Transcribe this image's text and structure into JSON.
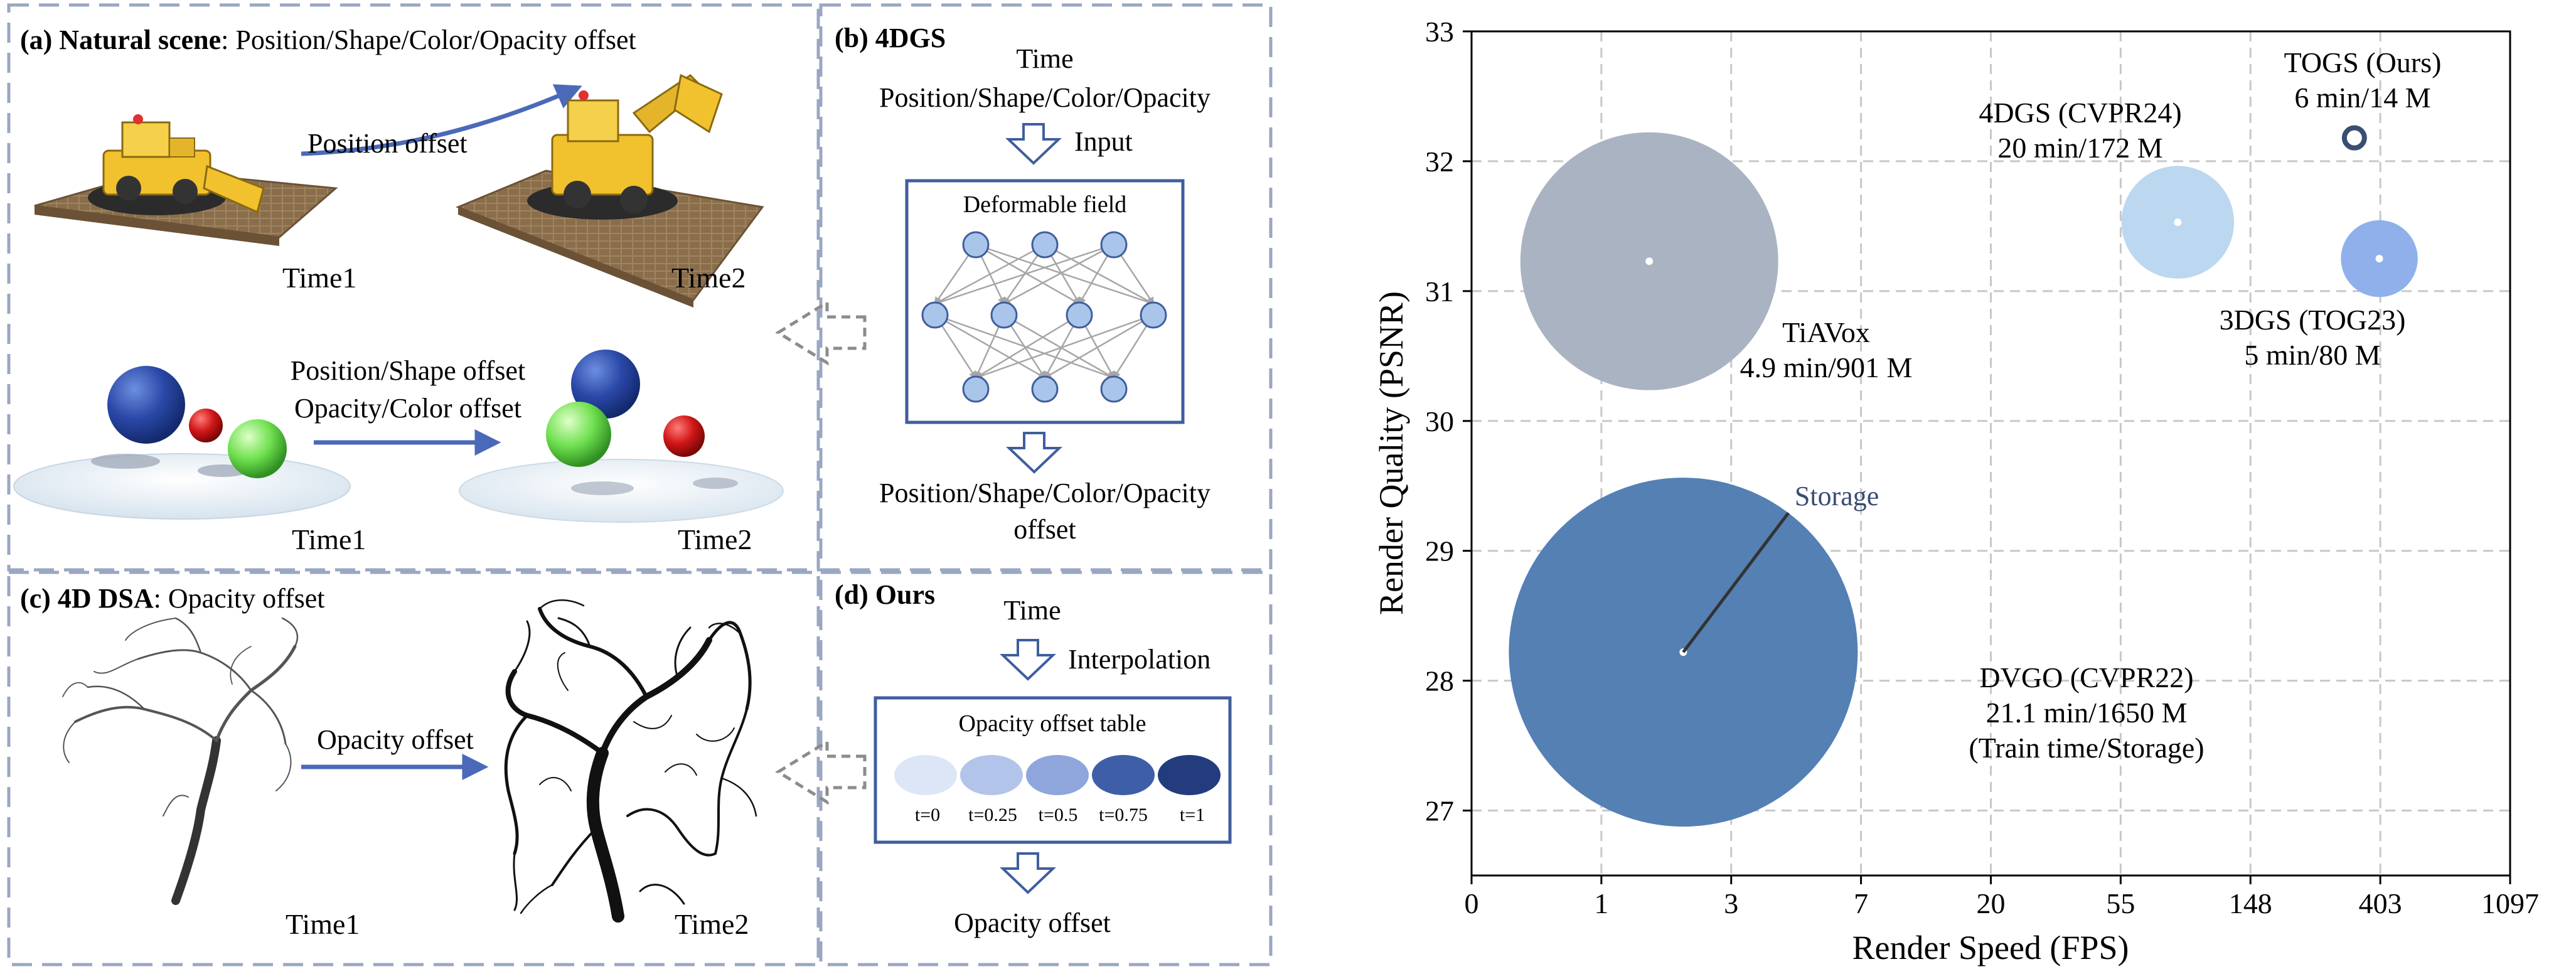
{
  "colors": {
    "panel_border": "#9aa7c2",
    "arrow_blue": "#4a69b8",
    "node_fill": "#a9c5ea",
    "node_stroke": "#3f5e9e",
    "grid": "#c8c8c8",
    "dvgo": "#5480b4",
    "tiavox": "#a9b3c2",
    "dgs4": "#bcd7f0",
    "dgs3": "#8fb0ea",
    "togs": "#3a4d72",
    "ellipse_1": "#dde6f6",
    "ellipse_2": "#b3c4ea",
    "ellipse_3": "#8ea6dc",
    "ellipse_4": "#3e5ea8",
    "ellipse_5": "#223c7e"
  },
  "panel_a": {
    "title_bold": "(a) Natural scene",
    "title_rest": ": Position/Shape/Color/Opacity offset",
    "position_offset": "Position offset",
    "time1_top": "Time1",
    "time2_top": "Time2",
    "offset_line1": "Position/Shape offset",
    "offset_line2": "Opacity/Color offset",
    "time1_bottom": "Time1",
    "time2_bottom": "Time2"
  },
  "panel_b": {
    "title": "(b) 4DGS",
    "time": "Time",
    "attributes": "Position/Shape/Color/Opacity",
    "input": "Input",
    "field_title": "Deformable field",
    "output_line1": "Position/Shape/Color/Opacity",
    "output_line2": "offset"
  },
  "panel_c": {
    "title_bold": "(c) 4D DSA",
    "title_rest": ": Opacity offset",
    "opacity_offset": "Opacity offset",
    "time1": "Time1",
    "time2": "Time2"
  },
  "panel_d": {
    "title": "(d) Ours",
    "time": "Time",
    "interpolation": "Interpolation",
    "table_title": "Opacity offset table",
    "t_labels": [
      "t=0",
      "t=0.25",
      "t=0.5",
      "t=0.75",
      "t=1"
    ],
    "output": "Opacity offset"
  },
  "chart_data": {
    "type": "scatter",
    "title": "",
    "xlabel": "Render Speed (FPS)",
    "ylabel": "Render Quality (PSNR)",
    "xscale": "log",
    "x_ticks": [
      0,
      1,
      3,
      7,
      20,
      55,
      148,
      403,
      1097
    ],
    "ylim": [
      26.5,
      33
    ],
    "y_ticks": [
      27,
      28,
      29,
      30,
      31,
      32,
      33
    ],
    "grid": true,
    "bubble_size": "Storage",
    "storage_label": "Storage",
    "series": [
      {
        "name": "DVGO (CVPR22)",
        "fps": 2,
        "psnr": 28.22,
        "train_time": "21.1 min",
        "storage_mb": 1650,
        "label_line1": "DVGO (CVPR22)",
        "label_line2": "21.1 min/1650 M",
        "label_line3": "(Train time/Storage)"
      },
      {
        "name": "TiAVox",
        "fps": 1.5,
        "psnr": 31.23,
        "train_time": "4.9 min",
        "storage_mb": 901,
        "label_line1": "TiAVox",
        "label_line2": "4.9 min/901 M"
      },
      {
        "name": "4DGS (CVPR24)",
        "fps": 85,
        "psnr": 31.53,
        "train_time": "20 min",
        "storage_mb": 172,
        "label_line1": "4DGS (CVPR24)",
        "label_line2": "20 min/172 M"
      },
      {
        "name": "3DGS (TOG23)",
        "fps": 400,
        "psnr": 31.25,
        "train_time": "5 min",
        "storage_mb": 80,
        "label_line1": "3DGS (TOG23)",
        "label_line2": "5 min/80 M"
      },
      {
        "name": "TOGS (Ours)",
        "fps": 330,
        "psnr": 32.18,
        "train_time": "6 min",
        "storage_mb": 14,
        "label_line1": "TOGS (Ours)",
        "label_line2": "6 min/14 M"
      }
    ]
  }
}
